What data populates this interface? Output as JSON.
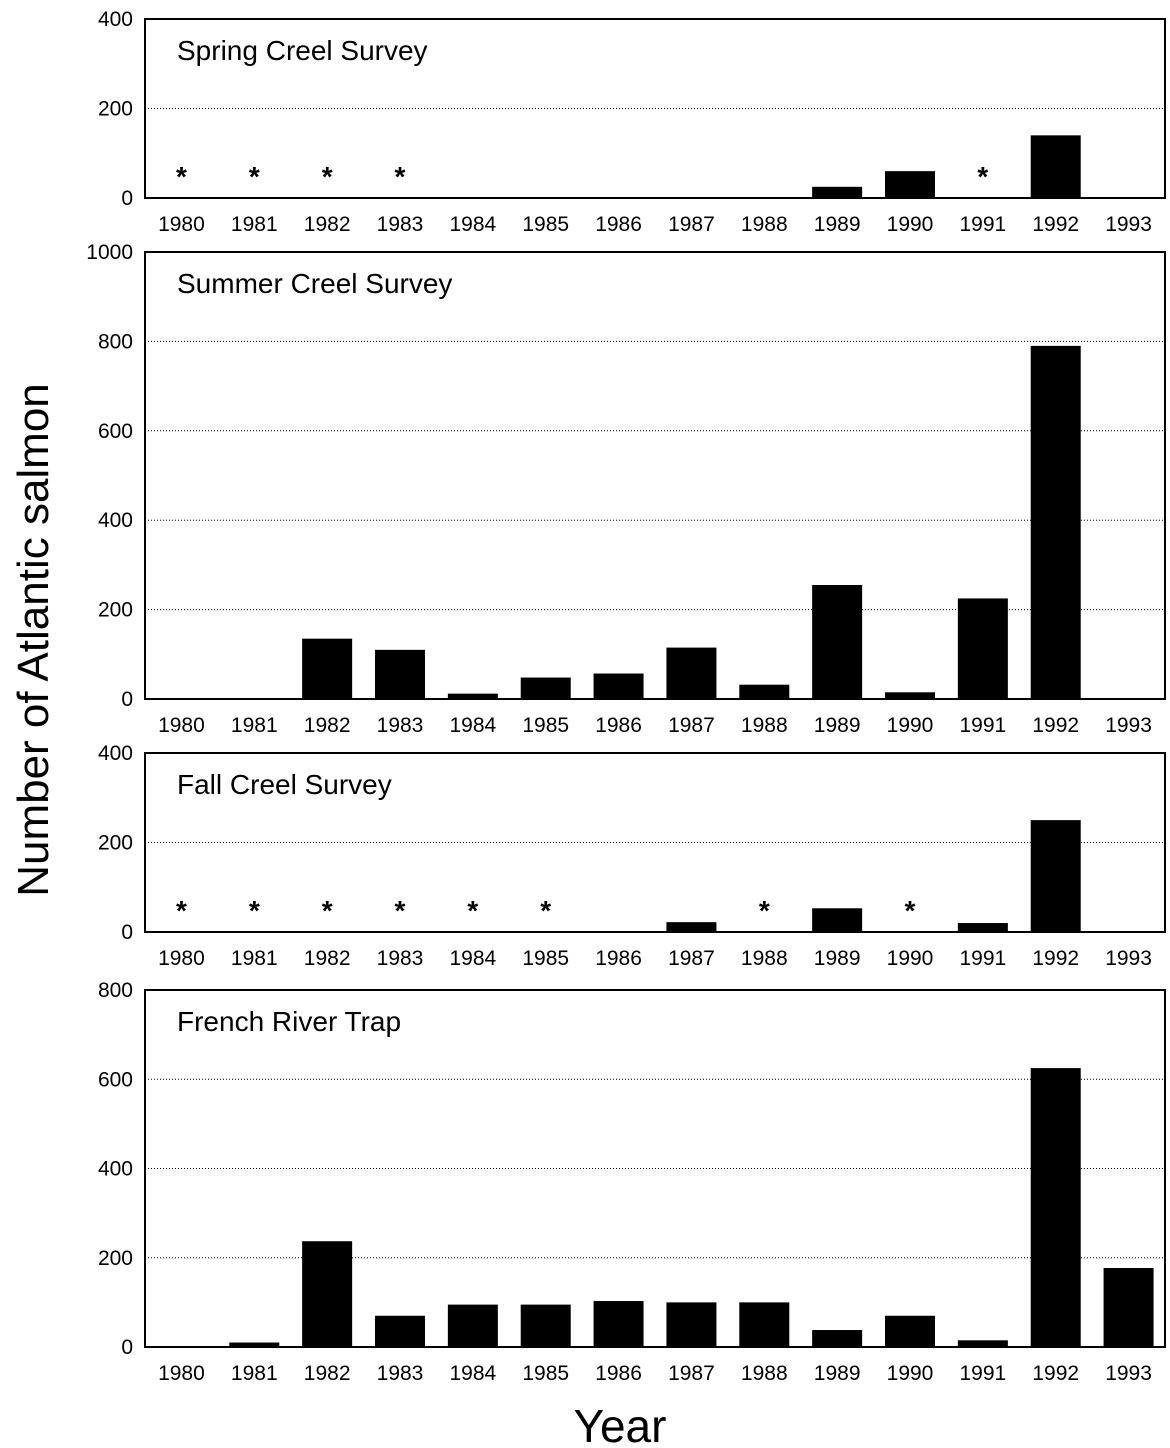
{
  "chart_data": {
    "type": "bar",
    "ylabel": "Number of Atlantic salmon",
    "xlabel": "Year",
    "categories": [
      "1980",
      "1981",
      "1982",
      "1983",
      "1984",
      "1985",
      "1986",
      "1987",
      "1988",
      "1989",
      "1990",
      "1991",
      "1992",
      "1993"
    ],
    "missing_marker": "*",
    "panels": [
      {
        "title": "Spring Creel Survey",
        "ylim": [
          0,
          400
        ],
        "yticks": [
          0,
          200,
          400
        ],
        "grid": true,
        "values": [
          null,
          null,
          null,
          null,
          0,
          0,
          0,
          0,
          0,
          25,
          60,
          null,
          140,
          0
        ],
        "missing": [
          "1980",
          "1981",
          "1982",
          "1983",
          "1991"
        ]
      },
      {
        "title": "Summer Creel Survey",
        "ylim": [
          0,
          1000
        ],
        "yticks": [
          0,
          200,
          400,
          600,
          800,
          1000
        ],
        "grid": true,
        "values": [
          0,
          0,
          135,
          110,
          12,
          48,
          57,
          115,
          32,
          255,
          15,
          225,
          790,
          0
        ],
        "missing": []
      },
      {
        "title": "Fall Creel Survey",
        "ylim": [
          0,
          400
        ],
        "yticks": [
          0,
          200,
          400
        ],
        "grid": true,
        "values": [
          null,
          null,
          null,
          null,
          null,
          null,
          0,
          22,
          null,
          53,
          null,
          20,
          250,
          0
        ],
        "missing": [
          "1980",
          "1981",
          "1982",
          "1983",
          "1984",
          "1985",
          "1988",
          "1990"
        ]
      },
      {
        "title": "French River Trap",
        "ylim": [
          0,
          800
        ],
        "yticks": [
          0,
          200,
          400,
          600,
          800
        ],
        "grid": true,
        "values": [
          0,
          10,
          237,
          70,
          95,
          95,
          103,
          100,
          100,
          38,
          70,
          15,
          625,
          177
        ],
        "missing": []
      }
    ]
  }
}
